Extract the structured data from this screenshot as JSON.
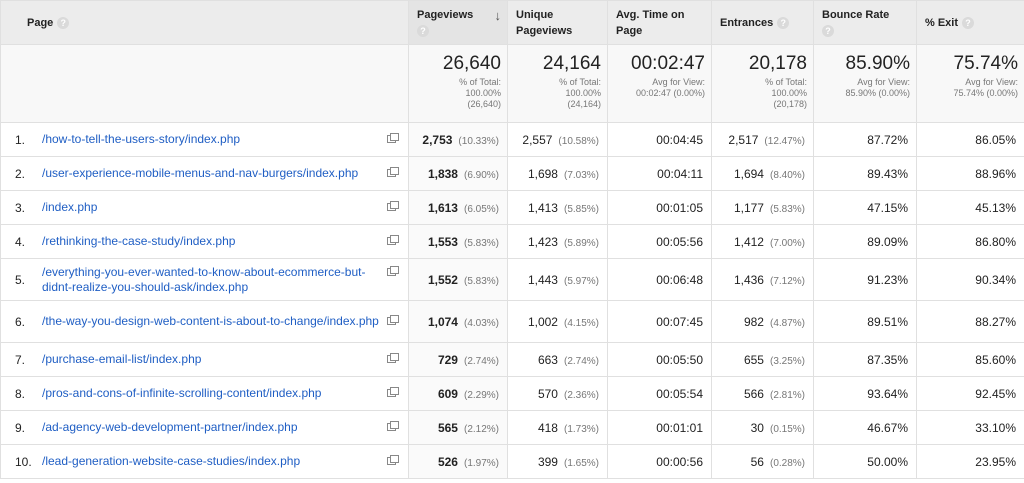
{
  "headers": {
    "page": "Page",
    "pageviews": "Pageviews",
    "unique_pageviews": "Unique Pageviews",
    "avg_time": "Avg. Time on Page",
    "entrances": "Entrances",
    "bounce_rate": "Bounce Rate",
    "exit": "% Exit",
    "help_icon": "?"
  },
  "totals": {
    "pageviews": {
      "value": "26,640",
      "l1": "% of Total:",
      "l2": "100.00%",
      "l3": "(26,640)"
    },
    "unique_pageviews": {
      "value": "24,164",
      "l1": "% of Total:",
      "l2": "100.00%",
      "l3": "(24,164)"
    },
    "avg_time": {
      "value": "00:02:47",
      "l1": "Avg for View:",
      "l2": "00:02:47 (0.00%)"
    },
    "entrances": {
      "value": "20,178",
      "l1": "% of Total:",
      "l2": "100.00%",
      "l3": "(20,178)"
    },
    "bounce_rate": {
      "value": "85.90%",
      "l1": "Avg for View:",
      "l2": "85.90% (0.00%)"
    },
    "exit": {
      "value": "75.74%",
      "l1": "Avg for View:",
      "l2": "75.74% (0.00%)"
    }
  },
  "rows": [
    {
      "n": "1.",
      "page": "/how-to-tell-the-users-story/index.php",
      "pv": "2,753",
      "pv_pct": "(10.33%)",
      "upv": "2,557",
      "upv_pct": "(10.58%)",
      "time": "00:04:45",
      "ent": "2,517",
      "ent_pct": "(12.47%)",
      "bounce": "87.72%",
      "exit": "86.05%"
    },
    {
      "n": "2.",
      "page": "/user-experience-mobile-menus-and-nav-burgers/index.php",
      "pv": "1,838",
      "pv_pct": "(6.90%)",
      "upv": "1,698",
      "upv_pct": "(7.03%)",
      "time": "00:04:11",
      "ent": "1,694",
      "ent_pct": "(8.40%)",
      "bounce": "89.43%",
      "exit": "88.96%"
    },
    {
      "n": "3.",
      "page": "/index.php",
      "pv": "1,613",
      "pv_pct": "(6.05%)",
      "upv": "1,413",
      "upv_pct": "(5.85%)",
      "time": "00:01:05",
      "ent": "1,177",
      "ent_pct": "(5.83%)",
      "bounce": "47.15%",
      "exit": "45.13%"
    },
    {
      "n": "4.",
      "page": "/rethinking-the-case-study/index.php",
      "pv": "1,553",
      "pv_pct": "(5.83%)",
      "upv": "1,423",
      "upv_pct": "(5.89%)",
      "time": "00:05:56",
      "ent": "1,412",
      "ent_pct": "(7.00%)",
      "bounce": "89.09%",
      "exit": "86.80%"
    },
    {
      "n": "5.",
      "page": "/everything-you-ever-wanted-to-know-about-ecommerce-but-didnt-realize-you-should-ask/index.php",
      "pv": "1,552",
      "pv_pct": "(5.83%)",
      "upv": "1,443",
      "upv_pct": "(5.97%)",
      "time": "00:06:48",
      "ent": "1,436",
      "ent_pct": "(7.12%)",
      "bounce": "91.23%",
      "exit": "90.34%"
    },
    {
      "n": "6.",
      "page": "/the-way-you-design-web-content-is-about-to-change/index.php",
      "pv": "1,074",
      "pv_pct": "(4.03%)",
      "upv": "1,002",
      "upv_pct": "(4.15%)",
      "time": "00:07:45",
      "ent": "982",
      "ent_pct": "(4.87%)",
      "bounce": "89.51%",
      "exit": "88.27%"
    },
    {
      "n": "7.",
      "page": "/purchase-email-list/index.php",
      "pv": "729",
      "pv_pct": "(2.74%)",
      "upv": "663",
      "upv_pct": "(2.74%)",
      "time": "00:05:50",
      "ent": "655",
      "ent_pct": "(3.25%)",
      "bounce": "87.35%",
      "exit": "85.60%"
    },
    {
      "n": "8.",
      "page": "/pros-and-cons-of-infinite-scrolling-content/index.php",
      "pv": "609",
      "pv_pct": "(2.29%)",
      "upv": "570",
      "upv_pct": "(2.36%)",
      "time": "00:05:54",
      "ent": "566",
      "ent_pct": "(2.81%)",
      "bounce": "93.64%",
      "exit": "92.45%"
    },
    {
      "n": "9.",
      "page": "/ad-agency-web-development-partner/index.php",
      "pv": "565",
      "pv_pct": "(2.12%)",
      "upv": "418",
      "upv_pct": "(1.73%)",
      "time": "00:01:01",
      "ent": "30",
      "ent_pct": "(0.15%)",
      "bounce": "46.67%",
      "exit": "33.10%"
    },
    {
      "n": "10.",
      "page": "/lead-generation-website-case-studies/index.php",
      "pv": "526",
      "pv_pct": "(1.97%)",
      "upv": "399",
      "upv_pct": "(1.65%)",
      "time": "00:00:56",
      "ent": "56",
      "ent_pct": "(0.28%)",
      "bounce": "50.00%",
      "exit": "23.95%"
    }
  ]
}
